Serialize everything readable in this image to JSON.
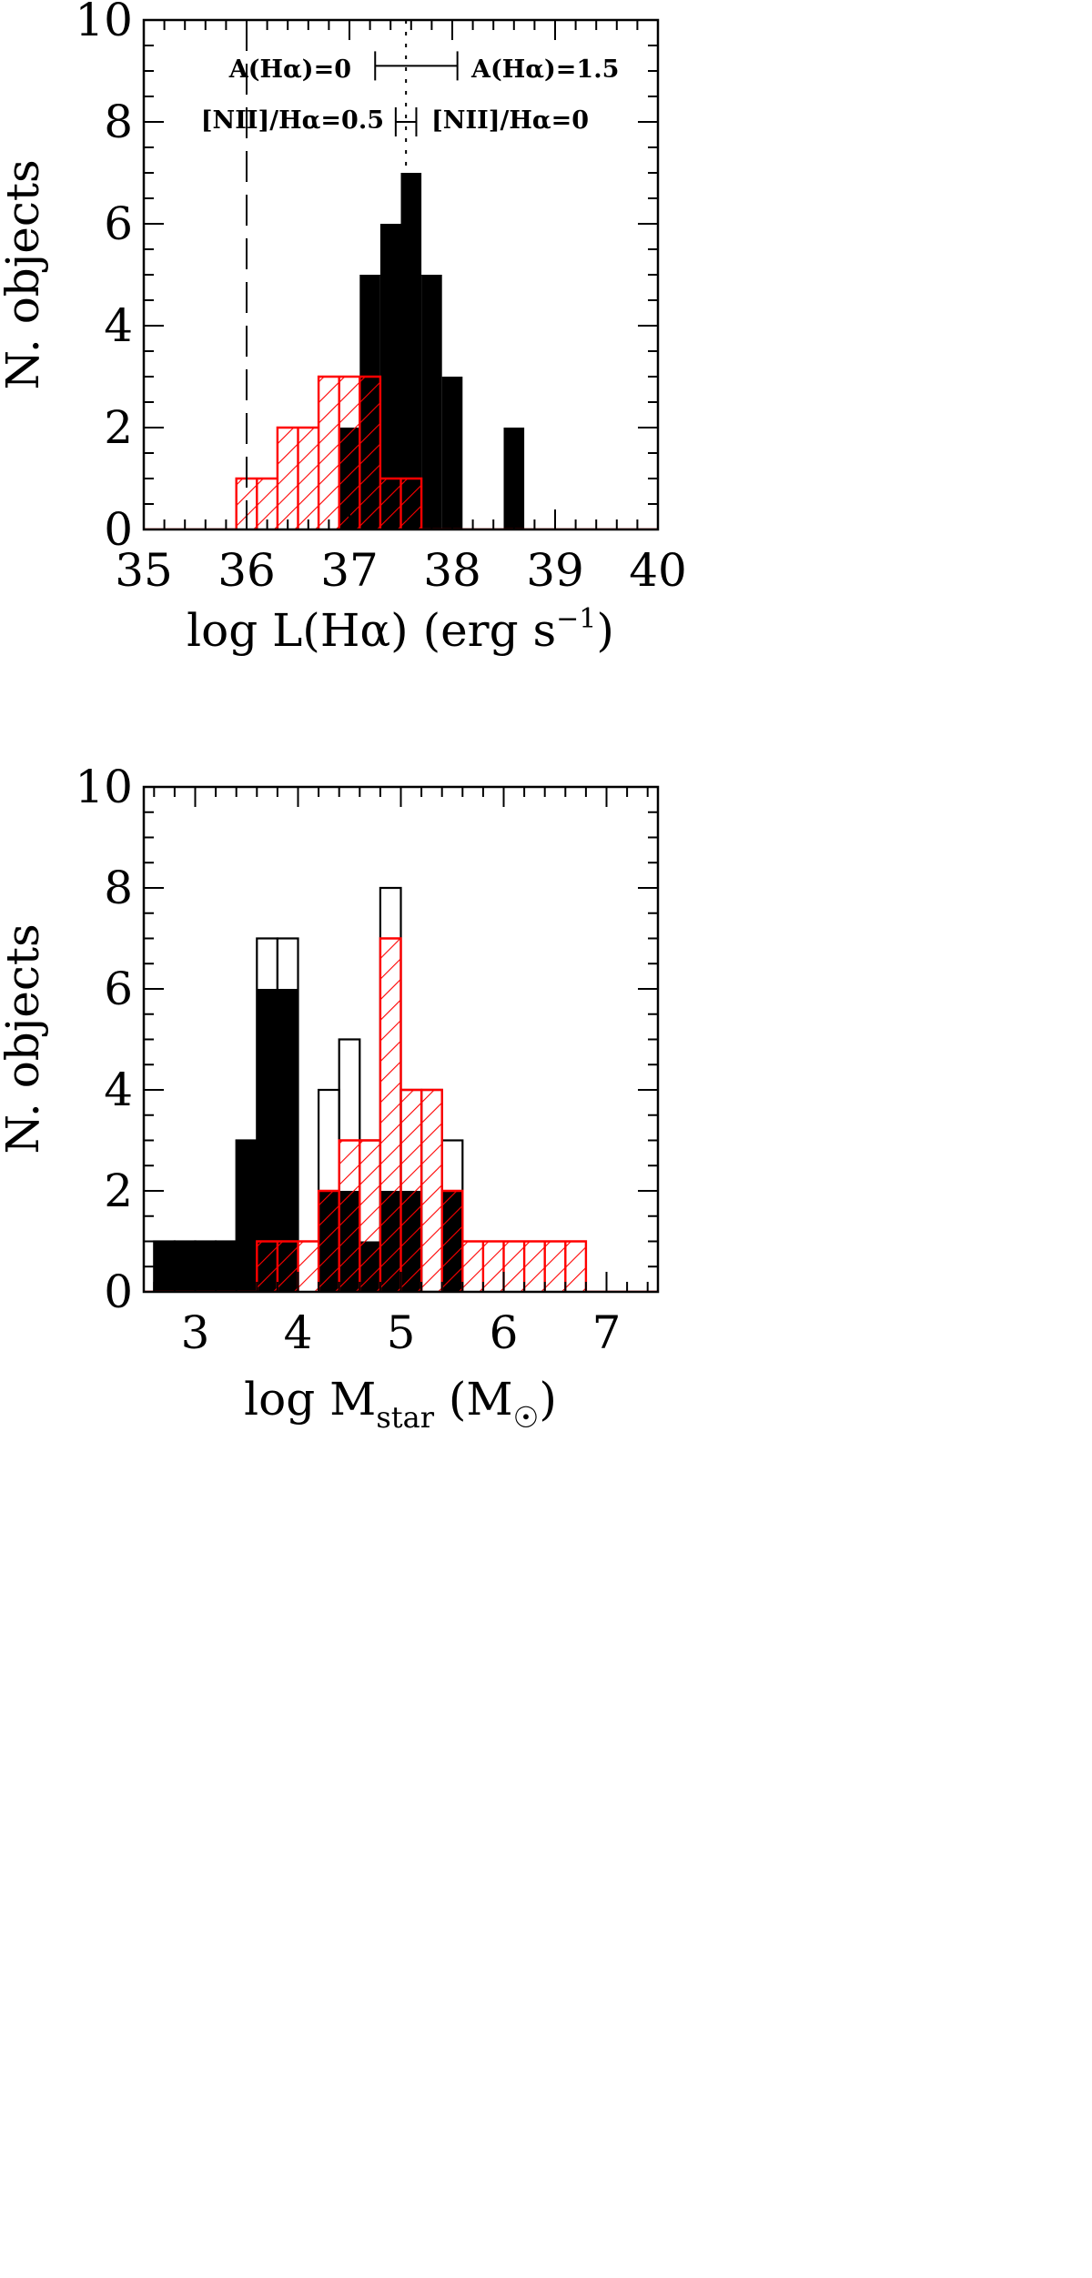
{
  "chart_data": [
    {
      "type": "bar",
      "subtype": "histogram",
      "xlim": [
        35,
        40
      ],
      "ylim": [
        0,
        10
      ],
      "xticks": [
        "35",
        "36",
        "37",
        "38",
        "39",
        "40"
      ],
      "yticks": [
        "0",
        "2",
        "4",
        "6",
        "8",
        "10"
      ],
      "xlabel": "log L(Hα)   (erg s",
      "xlabel_sup": "−1",
      "xlabel_tail": ")",
      "ylabel": "N. objects",
      "bin_width": 0.2,
      "series": [
        {
          "style": "filled",
          "color": "#000000",
          "bins": [
            [
              36.9,
              2
            ],
            [
              37.1,
              5
            ],
            [
              37.3,
              6
            ],
            [
              37.5,
              7
            ],
            [
              37.7,
              5
            ],
            [
              37.9,
              3
            ],
            [
              38.5,
              2
            ]
          ]
        },
        {
          "style": "hatched",
          "color": "#ff0000",
          "bins": [
            [
              35.9,
              1
            ],
            [
              36.1,
              1
            ],
            [
              36.3,
              2
            ],
            [
              36.5,
              2
            ],
            [
              36.7,
              3
            ],
            [
              36.9,
              3
            ],
            [
              37.1,
              3
            ],
            [
              37.3,
              1
            ],
            [
              37.5,
              1
            ]
          ]
        }
      ],
      "vertical_lines": [
        {
          "x": 36.0,
          "style": "dashed"
        },
        {
          "x": 37.55,
          "style": "dotted"
        }
      ],
      "error_bars": [
        {
          "y": 9.1,
          "xmin": 37.25,
          "xmax": 38.05,
          "left_text": "A(Hα)=0",
          "right_text": "A(Hα)=1.5"
        },
        {
          "y": 8.0,
          "xmin": 37.45,
          "xmax": 37.65,
          "left_text": "[NII]/Hα=0.5",
          "right_text": "[NII]/Hα=0"
        }
      ]
    },
    {
      "type": "bar",
      "subtype": "histogram",
      "xlim": [
        2.5,
        7.5
      ],
      "ylim": [
        0,
        10
      ],
      "xticks": [
        "3",
        "4",
        "5",
        "6",
        "7"
      ],
      "yticks": [
        "0",
        "2",
        "4",
        "6",
        "8",
        "10"
      ],
      "xlabel": "log M",
      "xlabel_sub": "star",
      "xlabel_tail": "   (M",
      "xlabel_sub2": "☉",
      "xlabel_end": ")",
      "ylabel": "N. objects",
      "bin_width": 0.2,
      "series": [
        {
          "style": "outline",
          "color": "#000000",
          "bins": [
            [
              2.6,
              1
            ],
            [
              2.8,
              1
            ],
            [
              3.0,
              1
            ],
            [
              3.2,
              1
            ],
            [
              3.4,
              3
            ],
            [
              3.6,
              7
            ],
            [
              3.8,
              7
            ],
            [
              4.2,
              4
            ],
            [
              4.4,
              5
            ],
            [
              4.6,
              3
            ],
            [
              4.8,
              8
            ],
            [
              5.0,
              4
            ],
            [
              5.2,
              4
            ],
            [
              5.4,
              3
            ]
          ]
        },
        {
          "style": "filled",
          "color": "#000000",
          "bins": [
            [
              2.6,
              1
            ],
            [
              2.8,
              1
            ],
            [
              3.0,
              1
            ],
            [
              3.2,
              1
            ],
            [
              3.4,
              3
            ],
            [
              3.6,
              6
            ],
            [
              3.8,
              6
            ],
            [
              4.2,
              2
            ],
            [
              4.4,
              2
            ],
            [
              4.6,
              1
            ],
            [
              4.8,
              2
            ],
            [
              5.0,
              2
            ],
            [
              5.4,
              2
            ]
          ]
        },
        {
          "style": "hatched",
          "color": "#ff0000",
          "bins": [
            [
              3.6,
              1
            ],
            [
              3.8,
              1
            ],
            [
              4.0,
              1
            ],
            [
              4.2,
              2
            ],
            [
              4.4,
              3
            ],
            [
              4.6,
              3
            ],
            [
              4.8,
              7
            ],
            [
              5.0,
              4
            ],
            [
              5.2,
              4
            ],
            [
              5.4,
              2
            ],
            [
              5.6,
              1
            ],
            [
              5.8,
              1
            ],
            [
              6.0,
              1
            ],
            [
              6.2,
              1
            ],
            [
              6.4,
              1
            ],
            [
              6.6,
              1
            ]
          ]
        }
      ]
    }
  ]
}
